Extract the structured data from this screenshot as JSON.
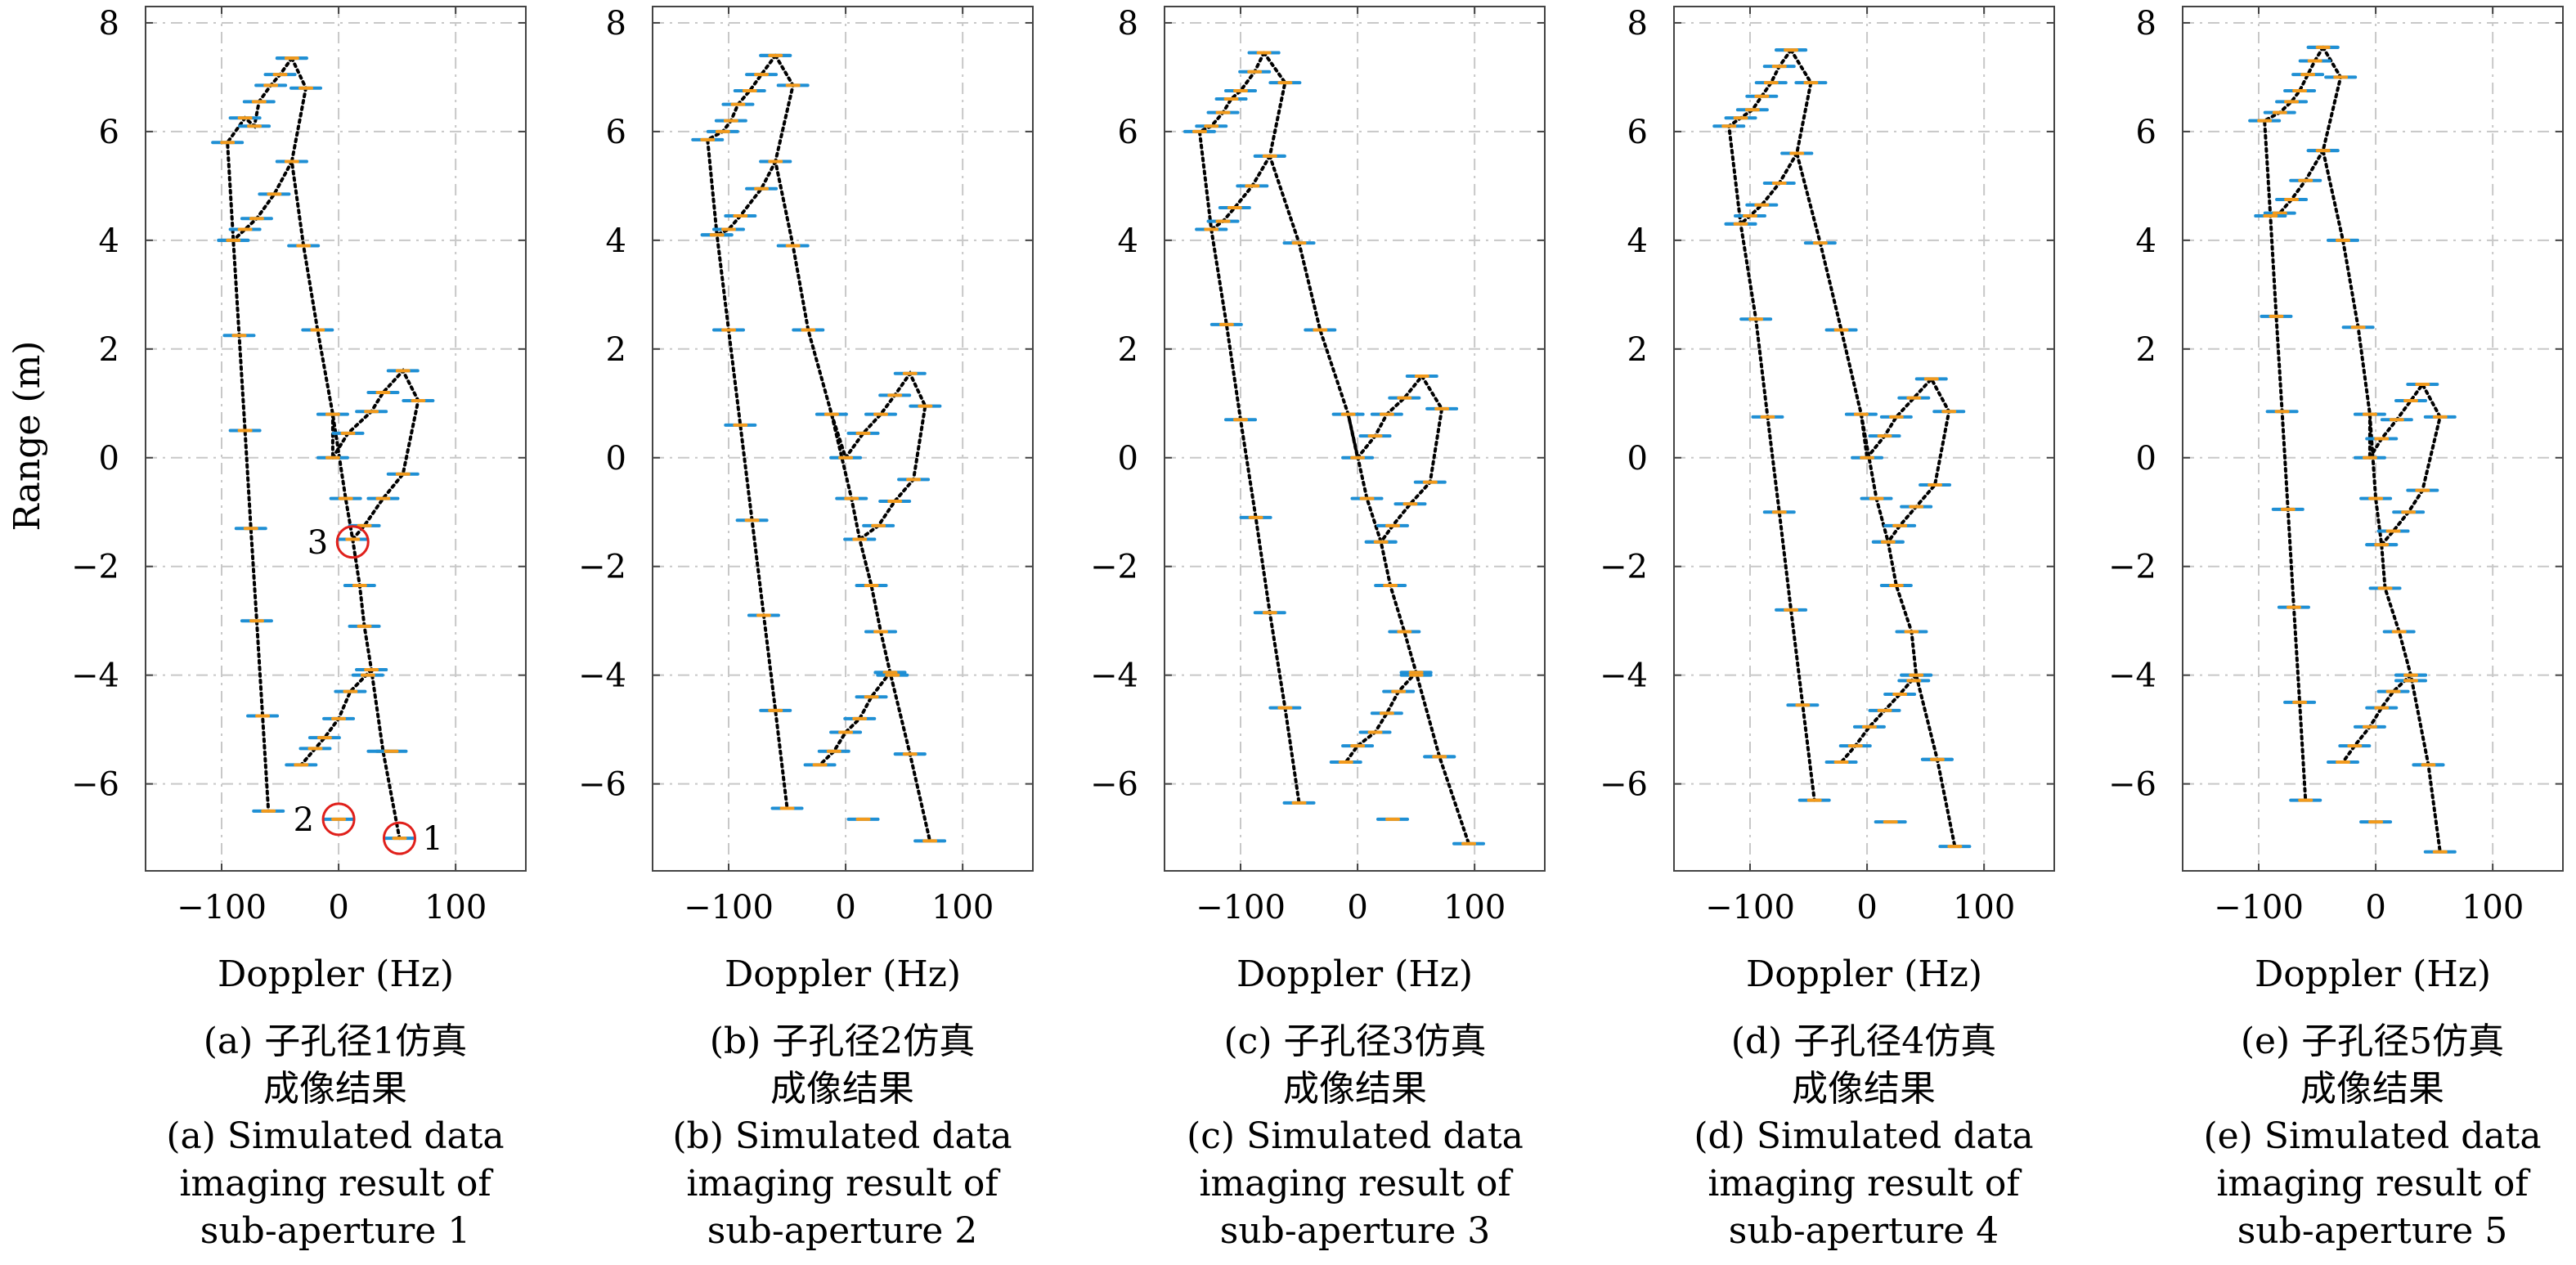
{
  "figure": {
    "ylabel": "Range (m)",
    "xlabel": "Doppler (Hz)"
  },
  "colors": {
    "axes": "#444444",
    "grid": "#c8c8c8",
    "target_line": "#000000",
    "marker_blue": "#1f8fd4",
    "marker_orange": "#f29a1c",
    "highlight_circle": "#e0201b"
  },
  "chart_data": [
    {
      "type": "scatter",
      "xlabel": "Doppler (Hz)",
      "ylabel": "Range (m)",
      "xlim": [
        -165,
        160
      ],
      "ylim": [
        -7.6,
        8.3
      ],
      "xticks": [
        -100,
        0,
        100
      ],
      "yticks": [
        -6,
        -4,
        -2,
        0,
        2,
        4,
        6,
        8
      ],
      "grid": true,
      "caption_cn": [
        "(a) 子孔径1仿真",
        "成像结果"
      ],
      "caption_en": [
        "(a) Simulated data",
        "imaging result of",
        "sub-aperture 1"
      ],
      "outline": [
        [
          -40,
          7.35
        ],
        [
          -28,
          6.8
        ],
        [
          -40,
          5.45
        ],
        [
          -30,
          3.9
        ],
        [
          -18,
          2.35
        ],
        [
          -5,
          0.8
        ],
        [
          6,
          -0.75
        ],
        [
          12,
          -1.5
        ],
        [
          18,
          -2.35
        ],
        [
          22,
          -3.1
        ],
        [
          28,
          -3.9
        ],
        [
          38,
          -5.4
        ],
        [
          52,
          -7.0
        ]
      ],
      "left_line": [
        [
          -40,
          7.35
        ],
        [
          -50,
          7.05
        ],
        [
          -58,
          6.85
        ],
        [
          -68,
          6.55
        ],
        [
          -72,
          6.1
        ],
        [
          -80,
          6.25
        ],
        [
          -95,
          5.8
        ],
        [
          -90,
          4.0
        ],
        [
          -85,
          2.25
        ],
        [
          -80,
          0.5
        ],
        [
          -75,
          -1.3
        ],
        [
          -70,
          -3.0
        ],
        [
          -65,
          -4.75
        ],
        [
          -60,
          -6.5
        ]
      ],
      "mid_left": [
        [
          -40,
          5.45
        ],
        [
          -55,
          4.85
        ],
        [
          -70,
          4.4
        ],
        [
          -80,
          4.2
        ],
        [
          -90,
          4.0
        ]
      ],
      "right_loop": [
        [
          -5,
          0.0
        ],
        [
          8,
          0.45
        ],
        [
          28,
          0.85
        ],
        [
          38,
          1.2
        ],
        [
          55,
          1.6
        ],
        [
          68,
          1.05
        ],
        [
          55,
          -0.3
        ],
        [
          38,
          -0.75
        ],
        [
          22,
          -1.25
        ],
        [
          12,
          -1.5
        ]
      ],
      "right_loop_link": [
        [
          -5,
          0.8
        ],
        [
          -5,
          0.0
        ]
      ],
      "bottom_left": [
        [
          28,
          -3.9
        ],
        [
          10,
          -4.3
        ],
        [
          0,
          -4.8
        ],
        [
          -12,
          -5.15
        ],
        [
          -20,
          -5.35
        ],
        [
          -32,
          -5.65
        ]
      ],
      "right_points": [
        [
          25,
          -4.0
        ],
        [
          45,
          -5.4
        ]
      ],
      "lone_points": [
        [
          0,
          -6.65
        ]
      ],
      "targets": [
        {
          "label": "1",
          "x": 52,
          "y": -7.0,
          "side": "right"
        },
        {
          "label": "2",
          "x": 0,
          "y": -6.65,
          "side": "left"
        },
        {
          "label": "3",
          "x": 12,
          "y": -1.55,
          "side": "left"
        }
      ]
    },
    {
      "type": "scatter",
      "xlabel": "Doppler (Hz)",
      "ylabel": "",
      "xlim": [
        -165,
        160
      ],
      "ylim": [
        -7.6,
        8.3
      ],
      "xticks": [
        -100,
        0,
        100
      ],
      "yticks": [
        -6,
        -4,
        -2,
        0,
        2,
        4,
        6,
        8
      ],
      "grid": true,
      "caption_cn": [
        "(b) 子孔径2仿真",
        "成像结果"
      ],
      "caption_en": [
        "(b) Simulated data",
        "imaging result of",
        "sub-aperture 2"
      ],
      "outline": [
        [
          -60,
          7.4
        ],
        [
          -45,
          6.85
        ],
        [
          -60,
          5.45
        ],
        [
          -45,
          3.9
        ],
        [
          -32,
          2.35
        ],
        [
          -12,
          0.8
        ],
        [
          5,
          -0.75
        ],
        [
          12,
          -1.5
        ],
        [
          22,
          -2.35
        ],
        [
          30,
          -3.2
        ],
        [
          38,
          -3.95
        ],
        [
          55,
          -5.45
        ],
        [
          72,
          -7.05
        ]
      ],
      "left_line": [
        [
          -60,
          7.4
        ],
        [
          -72,
          7.05
        ],
        [
          -82,
          6.75
        ],
        [
          -92,
          6.5
        ],
        [
          -98,
          6.2
        ],
        [
          -105,
          6.0
        ],
        [
          -118,
          5.85
        ],
        [
          -110,
          4.1
        ],
        [
          -100,
          2.35
        ],
        [
          -90,
          0.6
        ],
        [
          -80,
          -1.15
        ],
        [
          -70,
          -2.9
        ],
        [
          -60,
          -4.65
        ],
        [
          -50,
          -6.45
        ]
      ],
      "mid_left": [
        [
          -60,
          5.45
        ],
        [
          -72,
          4.95
        ],
        [
          -90,
          4.45
        ],
        [
          -100,
          4.2
        ],
        [
          -110,
          4.1
        ]
      ],
      "right_loop": [
        [
          0,
          0.0
        ],
        [
          15,
          0.45
        ],
        [
          30,
          0.8
        ],
        [
          42,
          1.15
        ],
        [
          55,
          1.55
        ],
        [
          68,
          0.95
        ],
        [
          58,
          -0.4
        ],
        [
          42,
          -0.8
        ],
        [
          28,
          -1.25
        ],
        [
          12,
          -1.5
        ]
      ],
      "right_loop_link": [
        [
          -12,
          0.8
        ],
        [
          0,
          0.0
        ]
      ],
      "bottom_left": [
        [
          38,
          -3.95
        ],
        [
          22,
          -4.4
        ],
        [
          12,
          -4.8
        ],
        [
          0,
          -5.05
        ],
        [
          -10,
          -5.4
        ],
        [
          -22,
          -5.65
        ]
      ],
      "right_points": [
        [
          40,
          -4.0
        ],
        [
          55,
          -5.45
        ]
      ],
      "lone_points": [
        [
          15,
          -6.65
        ]
      ],
      "targets": []
    },
    {
      "type": "scatter",
      "xlabel": "Doppler (Hz)",
      "ylabel": "",
      "xlim": [
        -165,
        160
      ],
      "ylim": [
        -7.6,
        8.3
      ],
      "xticks": [
        -100,
        0,
        100
      ],
      "yticks": [
        -6,
        -4,
        -2,
        0,
        2,
        4,
        6,
        8
      ],
      "grid": true,
      "caption_cn": [
        "(c) 子孔径3仿真",
        "成像结果"
      ],
      "caption_en": [
        "(c) Simulated data",
        "imaging result of",
        "sub-aperture 3"
      ],
      "outline": [
        [
          -80,
          7.45
        ],
        [
          -62,
          6.9
        ],
        [
          -75,
          5.55
        ],
        [
          -50,
          3.95
        ],
        [
          -32,
          2.35
        ],
        [
          -8,
          0.8
        ],
        [
          8,
          -0.75
        ],
        [
          20,
          -1.55
        ],
        [
          28,
          -2.35
        ],
        [
          40,
          -3.2
        ],
        [
          50,
          -3.95
        ],
        [
          70,
          -5.5
        ],
        [
          95,
          -7.1
        ]
      ],
      "left_line": [
        [
          -80,
          7.45
        ],
        [
          -88,
          7.1
        ],
        [
          -100,
          6.75
        ],
        [
          -108,
          6.6
        ],
        [
          -115,
          6.35
        ],
        [
          -125,
          6.1
        ],
        [
          -135,
          6.0
        ],
        [
          -125,
          4.2
        ],
        [
          -112,
          2.45
        ],
        [
          -100,
          0.7
        ],
        [
          -87,
          -1.1
        ],
        [
          -75,
          -2.85
        ],
        [
          -62,
          -4.6
        ],
        [
          -50,
          -6.35
        ]
      ],
      "mid_left": [
        [
          -75,
          5.55
        ],
        [
          -90,
          5.0
        ],
        [
          -105,
          4.6
        ],
        [
          -115,
          4.35
        ],
        [
          -125,
          4.2
        ]
      ],
      "right_loop": [
        [
          0,
          0.0
        ],
        [
          15,
          0.4
        ],
        [
          25,
          0.8
        ],
        [
          40,
          1.1
        ],
        [
          55,
          1.5
        ],
        [
          72,
          0.9
        ],
        [
          62,
          -0.45
        ],
        [
          45,
          -0.85
        ],
        [
          30,
          -1.25
        ],
        [
          20,
          -1.55
        ]
      ],
      "right_loop_link": [
        [
          -8,
          0.8
        ],
        [
          0,
          0.0
        ]
      ],
      "bottom_left": [
        [
          50,
          -3.95
        ],
        [
          35,
          -4.3
        ],
        [
          25,
          -4.7
        ],
        [
          15,
          -5.05
        ],
        [
          0,
          -5.3
        ],
        [
          -10,
          -5.6
        ]
      ],
      "right_points": [
        [
          50,
          -4.0
        ],
        [
          70,
          -5.5
        ]
      ],
      "lone_points": [
        [
          30,
          -6.65
        ]
      ],
      "targets": []
    },
    {
      "type": "scatter",
      "xlabel": "Doppler (Hz)",
      "ylabel": "",
      "xlim": [
        -165,
        160
      ],
      "ylim": [
        -7.6,
        8.3
      ],
      "xticks": [
        -100,
        0,
        100
      ],
      "yticks": [
        -6,
        -4,
        -2,
        0,
        2,
        4,
        6,
        8
      ],
      "grid": true,
      "caption_cn": [
        "(d) 子孔径4仿真",
        "成像结果"
      ],
      "caption_en": [
        "(d) Simulated data",
        "imaging result of",
        "sub-aperture 4"
      ],
      "outline": [
        [
          -65,
          7.5
        ],
        [
          -48,
          6.9
        ],
        [
          -60,
          5.6
        ],
        [
          -40,
          3.95
        ],
        [
          -22,
          2.35
        ],
        [
          -5,
          0.8
        ],
        [
          8,
          -0.75
        ],
        [
          18,
          -1.55
        ],
        [
          25,
          -2.35
        ],
        [
          38,
          -3.2
        ],
        [
          42,
          -4.0
        ],
        [
          60,
          -5.55
        ],
        [
          75,
          -7.15
        ]
      ],
      "left_line": [
        [
          -65,
          7.5
        ],
        [
          -75,
          7.2
        ],
        [
          -82,
          6.9
        ],
        [
          -90,
          6.65
        ],
        [
          -98,
          6.4
        ],
        [
          -108,
          6.25
        ],
        [
          -118,
          6.1
        ],
        [
          -108,
          4.3
        ],
        [
          -95,
          2.55
        ],
        [
          -85,
          0.75
        ],
        [
          -75,
          -1.0
        ],
        [
          -65,
          -2.8
        ],
        [
          -55,
          -4.55
        ],
        [
          -45,
          -6.3
        ]
      ],
      "mid_left": [
        [
          -60,
          5.6
        ],
        [
          -75,
          5.05
        ],
        [
          -90,
          4.65
        ],
        [
          -100,
          4.45
        ],
        [
          -108,
          4.3
        ]
      ],
      "right_loop": [
        [
          0,
          0.0
        ],
        [
          15,
          0.4
        ],
        [
          25,
          0.75
        ],
        [
          40,
          1.1
        ],
        [
          55,
          1.45
        ],
        [
          70,
          0.85
        ],
        [
          58,
          -0.5
        ],
        [
          42,
          -0.9
        ],
        [
          28,
          -1.25
        ],
        [
          18,
          -1.55
        ]
      ],
      "right_loop_link": [
        [
          -5,
          0.8
        ],
        [
          0,
          0.0
        ]
      ],
      "bottom_left": [
        [
          42,
          -4.0
        ],
        [
          28,
          -4.35
        ],
        [
          15,
          -4.65
        ],
        [
          2,
          -4.95
        ],
        [
          -10,
          -5.3
        ],
        [
          -22,
          -5.6
        ]
      ],
      "right_points": [
        [
          40,
          -4.1
        ],
        [
          60,
          -5.55
        ]
      ],
      "lone_points": [
        [
          20,
          -6.7
        ]
      ],
      "targets": []
    },
    {
      "type": "scatter",
      "xlabel": "Doppler (Hz)",
      "ylabel": "",
      "xlim": [
        -165,
        160
      ],
      "ylim": [
        -7.6,
        8.3
      ],
      "xticks": [
        -100,
        0,
        100
      ],
      "yticks": [
        -6,
        -4,
        -2,
        0,
        2,
        4,
        6,
        8
      ],
      "grid": true,
      "caption_cn": [
        "(e) 子孔径5仿真",
        "成像结果"
      ],
      "caption_en": [
        "(e) Simulated data",
        "imaging result of",
        "sub-aperture 5"
      ],
      "outline": [
        [
          -45,
          7.55
        ],
        [
          -30,
          7.0
        ],
        [
          -45,
          5.65
        ],
        [
          -28,
          4.0
        ],
        [
          -15,
          2.4
        ],
        [
          -5,
          0.8
        ],
        [
          0,
          -0.75
        ],
        [
          5,
          -1.6
        ],
        [
          8,
          -2.4
        ],
        [
          20,
          -3.2
        ],
        [
          30,
          -4.0
        ],
        [
          45,
          -5.65
        ],
        [
          55,
          -7.25
        ]
      ],
      "left_line": [
        [
          -45,
          7.55
        ],
        [
          -52,
          7.3
        ],
        [
          -58,
          7.05
        ],
        [
          -65,
          6.75
        ],
        [
          -72,
          6.55
        ],
        [
          -82,
          6.35
        ],
        [
          -95,
          6.2
        ],
        [
          -90,
          4.45
        ],
        [
          -85,
          2.6
        ],
        [
          -80,
          0.85
        ],
        [
          -75,
          -0.95
        ],
        [
          -70,
          -2.75
        ],
        [
          -65,
          -4.5
        ],
        [
          -60,
          -6.3
        ]
      ],
      "mid_left": [
        [
          -45,
          5.65
        ],
        [
          -60,
          5.1
        ],
        [
          -72,
          4.75
        ],
        [
          -82,
          4.5
        ],
        [
          -90,
          4.45
        ]
      ],
      "right_loop": [
        [
          -5,
          0.0
        ],
        [
          5,
          0.35
        ],
        [
          18,
          0.7
        ],
        [
          30,
          1.05
        ],
        [
          40,
          1.35
        ],
        [
          55,
          0.75
        ],
        [
          40,
          -0.6
        ],
        [
          28,
          -1.0
        ],
        [
          15,
          -1.35
        ],
        [
          5,
          -1.6
        ]
      ],
      "right_loop_link": [
        [
          -5,
          0.8
        ],
        [
          -5,
          0.0
        ]
      ],
      "bottom_left": [
        [
          30,
          -4.0
        ],
        [
          15,
          -4.3
        ],
        [
          5,
          -4.6
        ],
        [
          -5,
          -4.95
        ],
        [
          -18,
          -5.3
        ],
        [
          -28,
          -5.6
        ]
      ],
      "right_points": [
        [
          30,
          -4.1
        ],
        [
          45,
          -5.65
        ]
      ],
      "lone_points": [
        [
          0,
          -6.7
        ]
      ],
      "targets": []
    }
  ]
}
